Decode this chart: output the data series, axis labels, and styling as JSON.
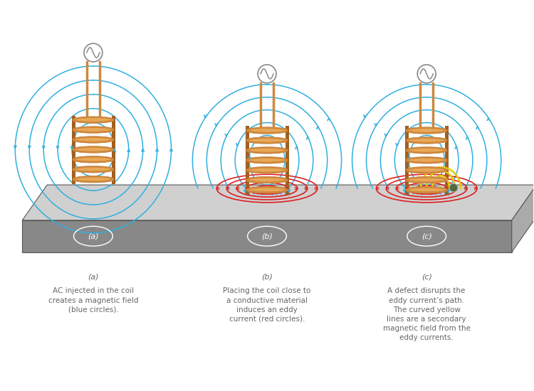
{
  "background_color": "#ffffff",
  "coil_color": "#cd8840",
  "coil_fill": "#e8a855",
  "coil_shade": "#a06020",
  "wire_color": "#cd8840",
  "blue_color": "#30b0e0",
  "red_color": "#dd2020",
  "yellow_color": "#e8c800",
  "plate_top": "#d0d0d0",
  "plate_front": "#888888",
  "plate_right": "#aaaaaa",
  "plate_edge": "#555555",
  "label_on_plate": "#ffffff",
  "caption_color": "#666666",
  "captions": {
    "a_label": "(a)",
    "b_label": "(b)",
    "c_label": "(c)",
    "a_text": "AC injected in the coil\ncreates a magnetic field\n(blue circles).",
    "b_text": "Placing the coil close to\na conductive material\ninduces an eddy\ncurrent (red circles).",
    "c_text": "A defect disrupts the\neddy current’s path.\nThe curved yellow\nlines are a secondary\nmagnetic field from the\neddy currents."
  }
}
